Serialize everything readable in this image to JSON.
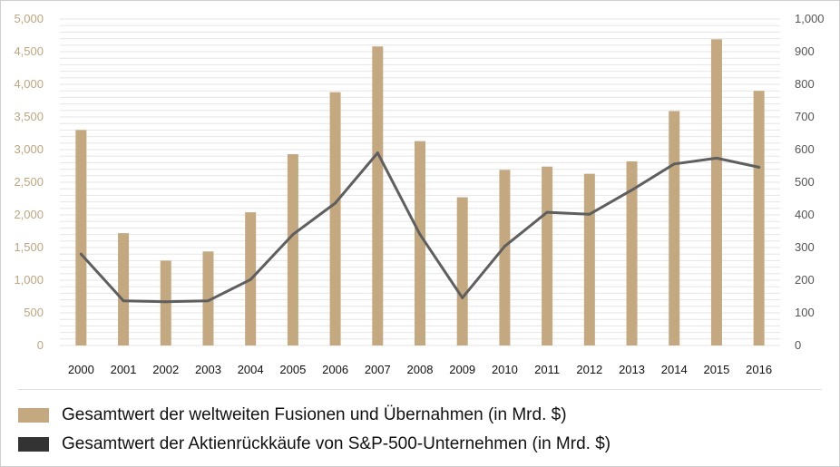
{
  "chart_data": {
    "type": "bar",
    "categories": [
      "2000",
      "2001",
      "2002",
      "2003",
      "2004",
      "2005",
      "2006",
      "2007",
      "2008",
      "2009",
      "2010",
      "2011",
      "2012",
      "2013",
      "2014",
      "2015",
      "2016"
    ],
    "series": [
      {
        "name": "Gesamtwert der weltweiten Fusionen und Übernahmen (in Mrd. $)",
        "type": "bar",
        "axis": "left",
        "color": "#c4a880",
        "values": [
          3300,
          1720,
          1300,
          1440,
          2040,
          2930,
          3880,
          4580,
          3130,
          2270,
          2690,
          2740,
          2630,
          2820,
          3590,
          4690,
          3900
        ]
      },
      {
        "name": "Gesamtwert der Aktienrückkäufe von S&P-500-Unternehmen (in Mrd. $)",
        "type": "line",
        "axis": "right",
        "color": "#5f5f5f",
        "values": [
          280,
          137,
          134,
          137,
          202,
          340,
          436,
          590,
          340,
          146,
          304,
          408,
          402,
          476,
          556,
          574,
          546
        ]
      }
    ],
    "y_left": {
      "min": 0,
      "max": 5000,
      "step": 500,
      "tick_labels": [
        "0",
        "500",
        "1,000",
        "1,500",
        "2,000",
        "2,500",
        "3,000",
        "3,500",
        "4,000",
        "4,500",
        "5,000"
      ]
    },
    "y_right": {
      "min": 0,
      "max": 1000,
      "step": 100,
      "tick_labels": [
        "0",
        "100",
        "200",
        "300",
        "400",
        "500",
        "600",
        "700",
        "800",
        "900",
        "1,000"
      ]
    },
    "grid": true,
    "legend": {
      "position": "bottom-left",
      "items": [
        {
          "label": "Gesamtwert der weltweiten Fusionen und Übernahmen (in Mrd. $)",
          "color": "#c4a880"
        },
        {
          "label": "Gesamtwert der Aktienrückkäufe von S&P-500-Unternehmen (in Mrd. $)",
          "color": "#333333"
        }
      ]
    }
  }
}
